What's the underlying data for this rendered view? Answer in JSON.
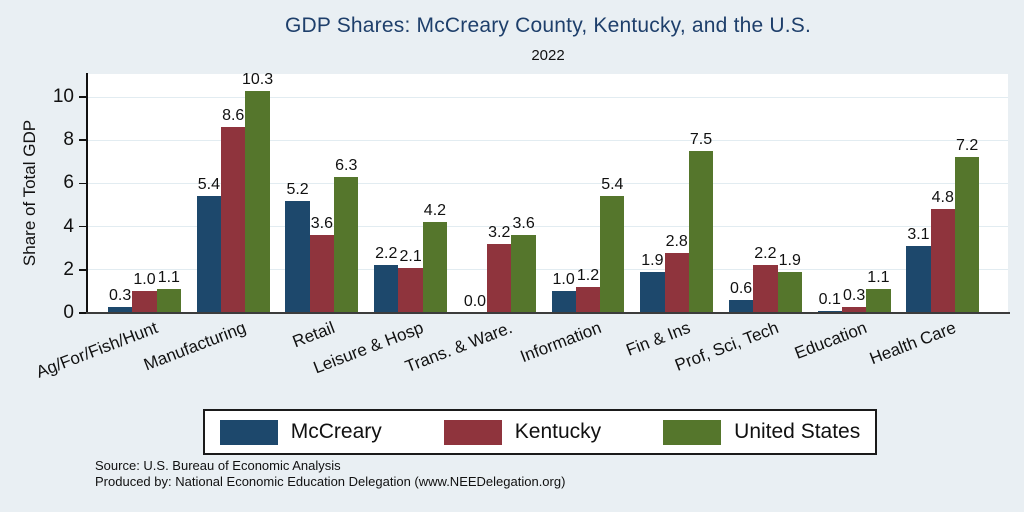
{
  "header": {
    "title": "GDP Shares: McCreary County, Kentucky, and the U.S.",
    "subtitle": "2022"
  },
  "chart_data": {
    "type": "bar",
    "title": "GDP Shares: McCreary County, Kentucky, and the U.S.",
    "subtitle": "2022",
    "xlabel": "",
    "ylabel": "Share of Total GDP",
    "ylim": [
      0,
      11.1
    ],
    "yticks": [
      0,
      2,
      4,
      6,
      8,
      10
    ],
    "grid": true,
    "legend_position": "bottom",
    "value_label_decimals": 1,
    "categories": [
      "Ag/For/Fish/Hunt",
      "Manufacturing",
      "Retail",
      "Leisure & Hosp",
      "Trans. & Ware.",
      "Information",
      "Fin & Ins",
      "Prof, Sci, Tech",
      "Education",
      "Health Care"
    ],
    "series": [
      {
        "name": "McCreary",
        "color": "#1d486c",
        "values": [
          0.3,
          5.4,
          5.2,
          2.2,
          0.0,
          1.0,
          1.9,
          0.6,
          0.1,
          3.1
        ]
      },
      {
        "name": "Kentucky",
        "color": "#8f343d",
        "values": [
          1.0,
          8.6,
          3.6,
          2.1,
          3.2,
          1.2,
          2.8,
          2.2,
          0.3,
          4.8
        ]
      },
      {
        "name": "United States",
        "color": "#55762c",
        "values": [
          1.1,
          10.3,
          6.3,
          4.2,
          3.6,
          5.4,
          7.5,
          1.9,
          1.1,
          7.2
        ]
      }
    ]
  },
  "footer": {
    "source": "Source: U.S. Bureau of Economic Analysis",
    "produced_by": "Produced by: National Economic Education Delegation (www.NEEDelegation.org)"
  },
  "colors": {
    "background": "#e9eff3",
    "plot_background": "#ffffff",
    "title_text": "#1e3f6b",
    "gridline": "#e2ecf1",
    "axis": "#111111"
  }
}
